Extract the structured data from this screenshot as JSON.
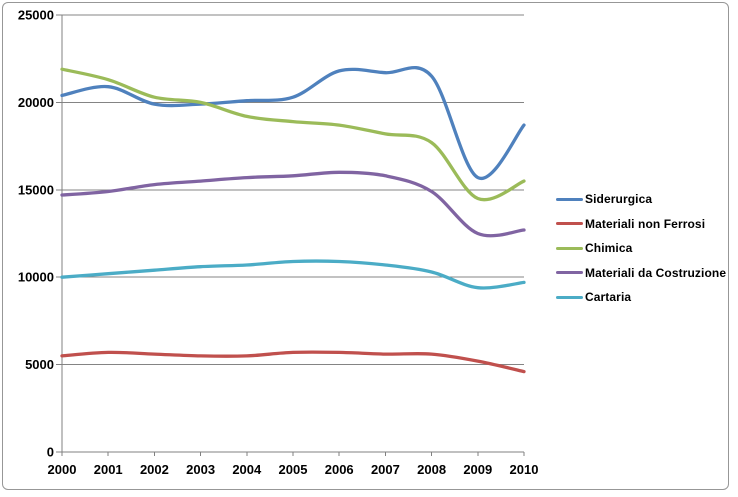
{
  "chart_data": {
    "type": "line",
    "x": [
      2000,
      2001,
      2002,
      2003,
      2004,
      2005,
      2006,
      2007,
      2008,
      2009,
      2010
    ],
    "series": [
      {
        "name": "Siderurgica",
        "color": "#4F81BD",
        "values": [
          20400,
          20900,
          19900,
          19900,
          20100,
          20300,
          21800,
          21700,
          21500,
          15700,
          18700
        ]
      },
      {
        "name": "Materiali non Ferrosi",
        "color": "#C0504D",
        "values": [
          5500,
          5700,
          5600,
          5500,
          5500,
          5700,
          5700,
          5600,
          5600,
          5200,
          4600
        ]
      },
      {
        "name": "Chimica",
        "color": "#9BBB59",
        "values": [
          21900,
          21300,
          20300,
          20000,
          19200,
          18900,
          18700,
          18200,
          17700,
          14500,
          15500
        ]
      },
      {
        "name": "Materiali da Costruzione",
        "color": "#8064A2",
        "values": [
          14700,
          14900,
          15300,
          15500,
          15700,
          15800,
          16000,
          15800,
          14900,
          12500,
          12700
        ]
      },
      {
        "name": "Cartaria",
        "color": "#4BACC6",
        "values": [
          10000,
          10200,
          10400,
          10600,
          10700,
          10900,
          10900,
          10700,
          10300,
          9400,
          9700
        ]
      }
    ],
    "ylim": [
      0,
      25000
    ],
    "y_ticks": [
      0,
      5000,
      10000,
      15000,
      20000,
      25000
    ],
    "xlabel": "",
    "ylabel": "",
    "grid": "horizontal",
    "legend_position": "right",
    "smoothed": true,
    "colors": {
      "axis": "#808080",
      "gridline": "#848484",
      "label": "#000000",
      "frame_border": "#979797"
    }
  }
}
